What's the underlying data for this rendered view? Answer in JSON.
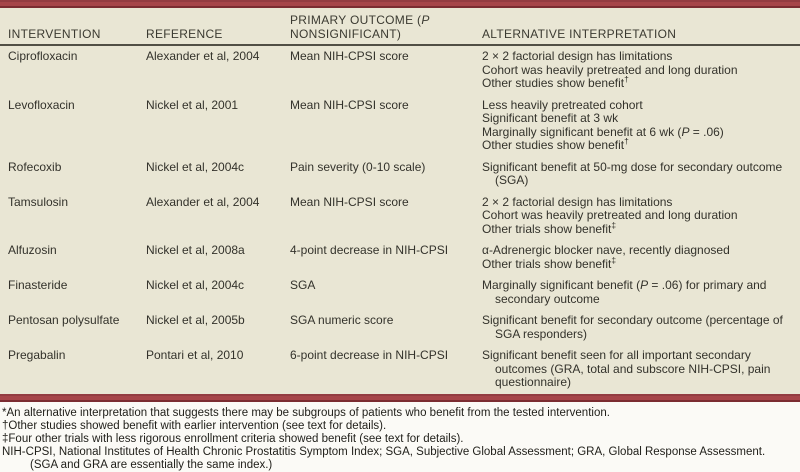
{
  "colors": {
    "bar_red": "#a64549",
    "bar_red_dark": "#7b2c31",
    "table_background": "#e9e6d4",
    "header_rule": "#514f45",
    "text": "#33322b"
  },
  "table": {
    "headers": [
      {
        "label": "INTERVENTION"
      },
      {
        "label": "REFERENCE"
      },
      {
        "label": "PRIMARY OUTCOME (P NONSIGNIFICANT)"
      },
      {
        "label": "ALTERNATIVE INTERPRETATION"
      }
    ],
    "rows": [
      {
        "intervention": "Ciprofloxacin",
        "reference": "Alexander et al, 2004",
        "primary_outcome": "Mean NIH-CPSI score",
        "alternative_interpretation": [
          "2 × 2 factorial design has limitations",
          "Cohort was heavily pretreated and long duration",
          "Other studies show benefit†"
        ]
      },
      {
        "intervention": "Levofloxacin",
        "reference": "Nickel et al, 2001",
        "primary_outcome": "Mean NIH-CPSI score",
        "alternative_interpretation": [
          "Less heavily pretreated cohort",
          "Significant benefit at 3 wk",
          "Marginally significant benefit at 6 wk (P = .06)",
          "Other studies show benefit†"
        ]
      },
      {
        "intervention": "Rofecoxib",
        "reference": "Nickel et al, 2004c",
        "primary_outcome": "Pain severity (0-10 scale)",
        "alternative_interpretation": [
          "Significant benefit at 50-mg dose for secondary outcome (SGA)"
        ]
      },
      {
        "intervention": "Tamsulosin",
        "reference": "Alexander et al, 2004",
        "primary_outcome": "Mean NIH-CPSI score",
        "alternative_interpretation": [
          "2 × 2 factorial design has limitations",
          "Cohort was heavily pretreated and long duration",
          "Other trials show benefit‡"
        ]
      },
      {
        "intervention": "Alfuzosin",
        "reference": "Nickel et al, 2008a",
        "primary_outcome": "4-point decrease in NIH-CPSI",
        "alternative_interpretation": [
          "α-Adrenergic blocker nave, recently diagnosed",
          "Other trials show benefit‡"
        ]
      },
      {
        "intervention": "Finasteride",
        "reference": "Nickel et al, 2004c",
        "primary_outcome": "SGA",
        "alternative_interpretation": [
          "Marginally significant benefit (P = .06) for primary and secondary outcome"
        ]
      },
      {
        "intervention": "Pentosan polysulfate",
        "reference": "Nickel et al, 2005b",
        "primary_outcome": "SGA numeric score",
        "alternative_interpretation": [
          "Significant benefit for secondary outcome (percentage of SGA responders)"
        ]
      },
      {
        "intervention": "Pregabalin",
        "reference": "Pontari et al, 2010",
        "primary_outcome": "6-point decrease in NIH-CPSI",
        "alternative_interpretation": [
          "Significant benefit seen for all important secondary outcomes (GRA, total and subscore NIH-CPSI, pain questionnaire)"
        ]
      }
    ]
  },
  "footnotes": [
    "*An alternative interpretation that suggests there may be subgroups of patients who benefit from the tested intervention.",
    "†Other studies showed benefit with earlier intervention (see text for details).",
    "‡Four other trials with less rigorous enrollment criteria showed benefit (see text for details).",
    "NIH-CPSI, National Institutes of Health Chronic Prostatitis Symptom Index; SGA, Subjective Global Assessment; GRA, Global Response Assessment. (SGA and GRA are essentially the same index.)"
  ]
}
